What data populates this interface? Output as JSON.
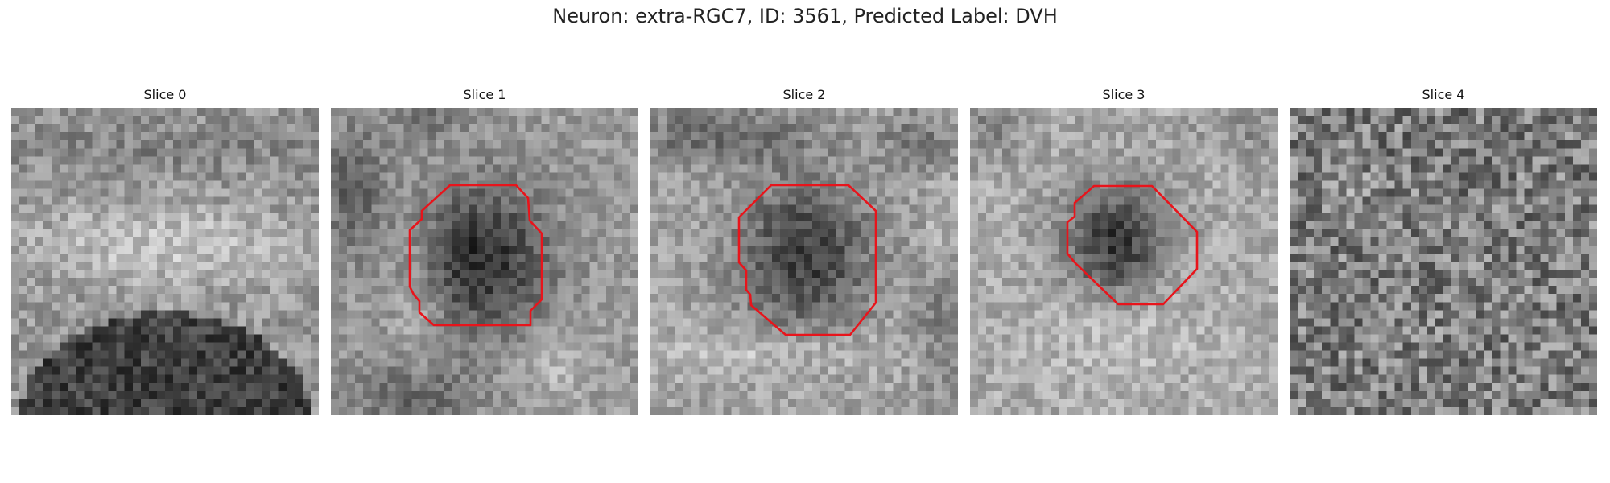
{
  "figure": {
    "title": "Neuron: extra-RGC7, ID: 3561, Predicted Label: DVH"
  },
  "colors": {
    "contour": "#e8141b",
    "background": "#ffffff"
  },
  "panels": [
    {
      "title": "Slice 0",
      "has_contour": false
    },
    {
      "title": "Slice 1",
      "has_contour": true
    },
    {
      "title": "Slice 2",
      "has_contour": true
    },
    {
      "title": "Slice 3",
      "has_contour": true
    },
    {
      "title": "Slice 4",
      "has_contour": false
    }
  ]
}
